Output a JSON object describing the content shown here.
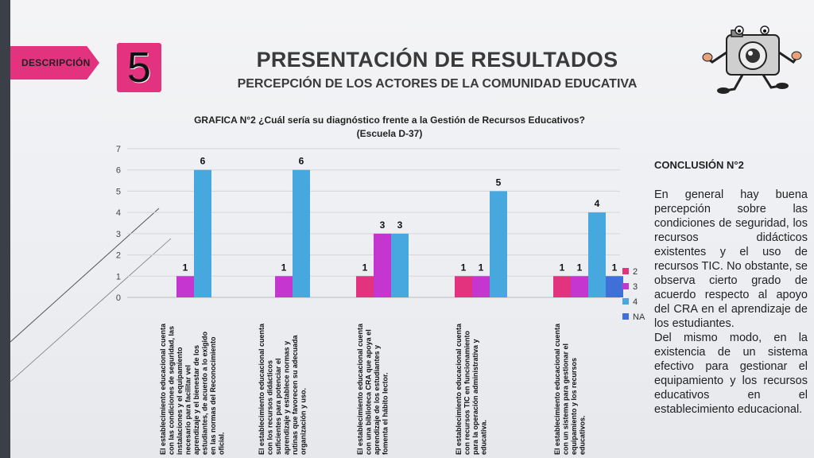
{
  "header": {
    "tag_label": "DESCRIPCIÓN",
    "section_number": "5",
    "title": "PRESENTACIÓN DE RESULTADOS",
    "subtitle": "PERCEPCIÓN DE LOS ACTORES DE LA COMUNIDAD EDUCATIVA",
    "mascot_icon": "camera-mascot-icon"
  },
  "colors": {
    "accent": "#e3327e",
    "series": [
      "#e3327e",
      "#c535d0",
      "#47a8e0",
      "#3f6fd8"
    ]
  },
  "chart_data": {
    "type": "bar",
    "title_line1": "GRAFICA N°2 ¿Cuál sería su diagnóstico frente a la Gestión de Recursos Educativos?",
    "title_line2": "(Escuela D-37)",
    "ylim": [
      0,
      7
    ],
    "yticks": [
      "0",
      "1",
      "2",
      "3",
      "4",
      "5",
      "6",
      "7"
    ],
    "grid": true,
    "legend_position": "right",
    "categories": [
      "El establecimiento educacional cuenta con las condiciones de seguridad, las instalaciones y el equipamiento necesario para facilitar vel aprendizaje y el bienestar de los estudiantes, de acuerdo a lo exigido en las normas del Reconocimiento oficial.",
      "El establecimiento educacional cuenta con los recursos didácticos suficientes para potenciar el aprendizaje y establece normas y rutinas que favorecen su adecuada organización y uso.",
      "El establecimiento educacional cuenta con una biblioteca CRA que apoya el aprendizaje de los estudiantes y fomenta el hábito lector.",
      "El establecimiento educacional cuenta con recursos TIC en funcionamiento para la operación administrativa y educativa.",
      "El establecimiento educacional cuenta con un sistema para gestionar el equipamiento y los recursos educativos."
    ],
    "series": [
      {
        "name": "2",
        "values": [
          null,
          null,
          1,
          1,
          1
        ]
      },
      {
        "name": "3",
        "values": [
          1,
          1,
          3,
          1,
          1
        ]
      },
      {
        "name": "4",
        "values": [
          6,
          6,
          3,
          5,
          4
        ]
      },
      {
        "name": "NA",
        "values": [
          null,
          null,
          null,
          null,
          1
        ]
      }
    ]
  },
  "conclusion": {
    "heading": "CONCLUSIÓN N°2",
    "paragraph1": "En general hay buena percepción sobre las condiciones de seguridad, los recursos didácticos existentes y el uso de recursos TIC. No obstante, se observa cierto grado de acuerdo respecto al apoyo del CRA en el aprendizaje de los estudiantes.",
    "paragraph2": "Del mismo modo, en la existencia de un sistema efectivo para gestionar el equipamiento y los recursos educativos en el establecimiento educacional."
  }
}
